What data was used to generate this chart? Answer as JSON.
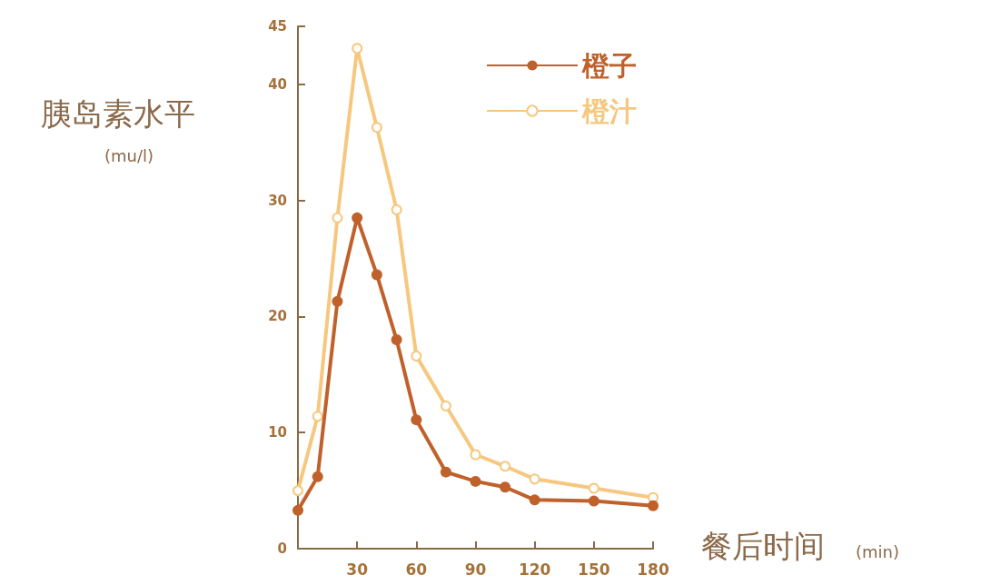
{
  "chart_data": {
    "type": "line",
    "ylabel": "胰岛素水平 (mu/l)",
    "xlabel": "餐后时间 (min)",
    "x": [
      0,
      10,
      20,
      30,
      40,
      50,
      60,
      75,
      90,
      105,
      120,
      150,
      180
    ],
    "series": [
      {
        "name": "橙子",
        "color": "#c0612b",
        "marker": "circle",
        "values": [
          3.3,
          6.2,
          21.3,
          28.5,
          23.6,
          18.0,
          11.1,
          6.6,
          5.8,
          5.3,
          4.2,
          4.1,
          3.7
        ]
      },
      {
        "name": "橙汁",
        "color": "#f6c87f",
        "marker": "circle",
        "values": [
          5.0,
          11.4,
          28.5,
          43.1,
          36.3,
          29.2,
          16.6,
          12.3,
          8.1,
          7.1,
          6.0,
          5.2,
          4.4
        ]
      }
    ],
    "xlim": [
      0,
      180
    ],
    "xticks": [
      {
        "value": 0,
        "label": null
      },
      30,
      60,
      90,
      120,
      150,
      180
    ],
    "ylim": [
      0,
      45
    ],
    "yticks": [
      0,
      10,
      20,
      30,
      40,
      45
    ],
    "grid": false,
    "legend": "top right",
    "line_style": "solid"
  }
}
